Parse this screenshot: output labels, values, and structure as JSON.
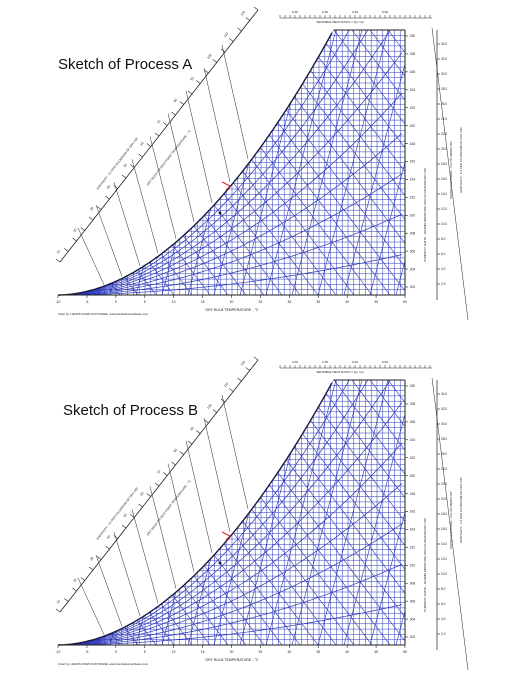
{
  "colors": {
    "grid": "#2a36b8",
    "text": "#111111",
    "axis": "#222222",
    "marker": "#d12222"
  },
  "panels": [
    {
      "title": "Sketch of Process A",
      "top_axis_label": "SENSIBLE HEAT RATIO = Qs / Qt",
      "x_axis_label": "DRY BULB TEMPERATURE - °C",
      "credit": "Chart by: HANDS DOWN SOFTWARE, www.handsdownsoftware.com",
      "right_axis_label_1": "HUMIDITY RATIO - GRAMS MOISTURE PER KILOGRAM DRY AIR",
      "right_axis_label_2": "VAPOR PRESSURE - mm OF MERCURY",
      "right_axis_label_3": "ENTHALPY - KJ PER KILOGRAM OF DRY AIR",
      "diag_label_1": "ENTHALPY - KJ PER KILOGRAM OF DRY AIR",
      "diag_label_2": "WET BULB OR DEW POINT TEMPERATURE - °C"
    },
    {
      "title": "Sketch of Process B",
      "top_axis_label": "SENSIBLE HEAT RATIO = Qs / Qt",
      "x_axis_label": "DRY BULB TEMPERATURE - °C",
      "credit": "Chart by: HANDS DOWN SOFTWARE, www.handsdownsoftware.com",
      "right_axis_label_1": "HUMIDITY RATIO - GRAMS MOISTURE PER KILOGRAM DRY AIR",
      "right_axis_label_2": "VAPOR PRESSURE - mm OF MERCURY",
      "right_axis_label_3": "ENTHALPY - KJ PER KILOGRAM OF DRY AIR",
      "diag_label_1": "ENTHALPY - KJ PER KILOGRAM OF DRY AIR",
      "diag_label_2": "WET BULB OR DEW POINT TEMPERATURE - °C"
    }
  ],
  "x_ticks": [
    "-10",
    "-5",
    "0",
    "5",
    "10",
    "15",
    "20",
    "25",
    "30",
    "35",
    "40",
    "45",
    "50"
  ],
  "right_ticks": [
    ".030",
    ".028",
    ".026",
    ".024",
    ".022",
    ".020",
    ".018",
    ".016",
    ".014",
    ".012",
    ".010",
    ".008",
    ".006",
    ".004",
    ".002"
  ],
  "shr_ticks": [
    "0.20",
    "0.30",
    "0.40",
    "0.50"
  ],
  "vp_ticks": [
    "34.0",
    "32.0",
    "30.0",
    "28.0",
    "26.0",
    "24.0",
    "22.0",
    "20.0",
    "18.0",
    "16.0",
    "14.0",
    "12.0",
    "10.0",
    "8.0",
    "6.0",
    "4.0",
    "2.0"
  ],
  "enthalpy_ticks": [
    "10",
    "20",
    "30",
    "40",
    "50",
    "60",
    "70",
    "80",
    "90",
    "100",
    "110",
    "120"
  ]
}
